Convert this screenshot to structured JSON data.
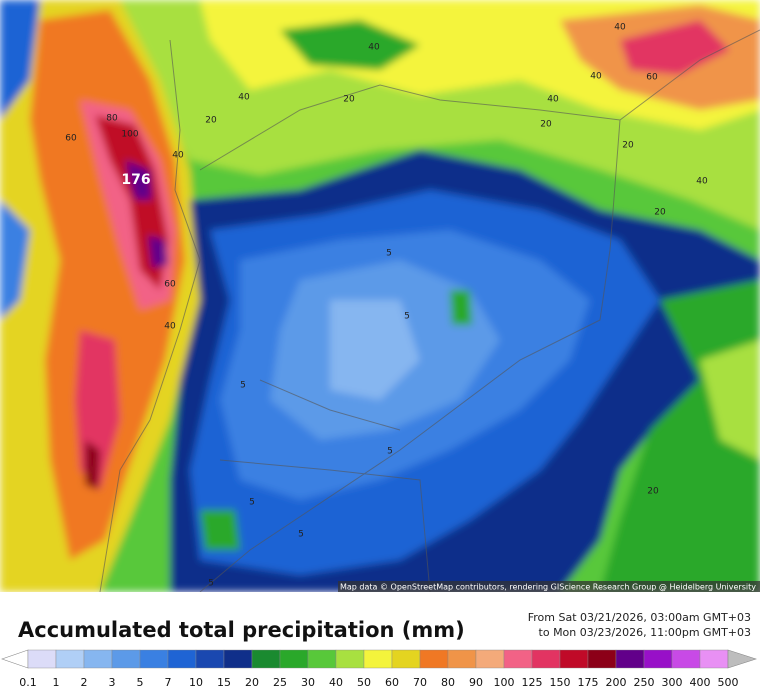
{
  "map": {
    "attribution": "Map data © OpenStreetMap contributors, rendering GIScience Research Group @ Heidelberg University",
    "peak_label": 176,
    "contour_labels": [
      40,
      40,
      40,
      60,
      40,
      20,
      40,
      20,
      20,
      20,
      80,
      100,
      60,
      40,
      40,
      20,
      5,
      60,
      5,
      40,
      5,
      5,
      5,
      20,
      5,
      5
    ]
  },
  "header": {
    "title": "Accumulated total precipitation (mm)",
    "period_from": "From Sat 03/21/2026, 03:00am GMT+03",
    "period_to": "to Mon 03/23/2026, 11:00pm GMT+03"
  },
  "legend": {
    "labels": [
      0.1,
      1,
      2,
      3,
      5,
      7,
      10,
      15,
      20,
      25,
      30,
      40,
      50,
      60,
      70,
      80,
      90,
      100,
      125,
      150,
      175,
      200,
      250,
      300,
      400,
      500
    ],
    "colors": [
      "#dcdcf8",
      "#b0cff6",
      "#86b6f0",
      "#5c9ae8",
      "#3a80e2",
      "#1f64d4",
      "#1a48b0",
      "#102f8a",
      "#1a8a30",
      "#2aa82a",
      "#58c83a",
      "#a8e040",
      "#f4f43c",
      "#e4d420",
      "#f07824",
      "#f09448",
      "#f4aa7a",
      "#f26286",
      "#e23462",
      "#c00a28",
      "#8c0018",
      "#62008a",
      "#9810c8",
      "#c84ae6",
      "#e890f4",
      "#bdbdbd"
    ]
  }
}
